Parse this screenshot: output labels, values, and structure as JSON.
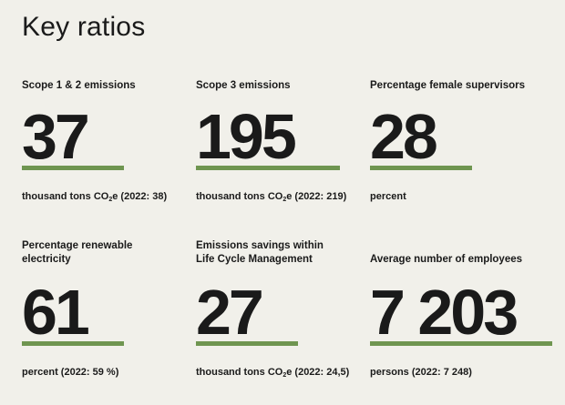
{
  "page": {
    "title": "Key ratios"
  },
  "ratios": [
    {
      "label": "Scope 1 & 2 emissions",
      "value": "37",
      "bar_fraction": 0.56,
      "note_prefix": "thousand tons CO",
      "note_sub": "2",
      "note_suffix": "e (2022: 38)"
    },
    {
      "label": "Scope 3 emissions",
      "value": "195",
      "bar_fraction": 0.79,
      "note_prefix": "thousand tons CO",
      "note_sub": "2",
      "note_suffix": "e (2022: 219)"
    },
    {
      "label": "Percentage female supervisors",
      "value": "28",
      "bar_fraction": 0.56,
      "note_prefix": "percent",
      "note_sub": "",
      "note_suffix": ""
    },
    {
      "label": "Percentage renewable electricity",
      "value": "61",
      "bar_fraction": 0.56,
      "note_prefix": "percent (2022: 59 %)",
      "note_sub": "",
      "note_suffix": ""
    },
    {
      "label": "Emissions savings within Life Cycle Management",
      "value": "27",
      "bar_fraction": 0.56,
      "note_prefix": "thousand tons CO",
      "note_sub": "2",
      "note_suffix": "e (2022: 24,5)"
    },
    {
      "label": "Average number of employees",
      "value": "7 203",
      "bar_fraction": 1.0,
      "note_prefix": "persons (2022: 7 248)",
      "note_sub": "",
      "note_suffix": ""
    }
  ],
  "colors": {
    "accent_bar": "#6f9550",
    "background": "#f1f0ea",
    "text": "#1a1a1a"
  }
}
